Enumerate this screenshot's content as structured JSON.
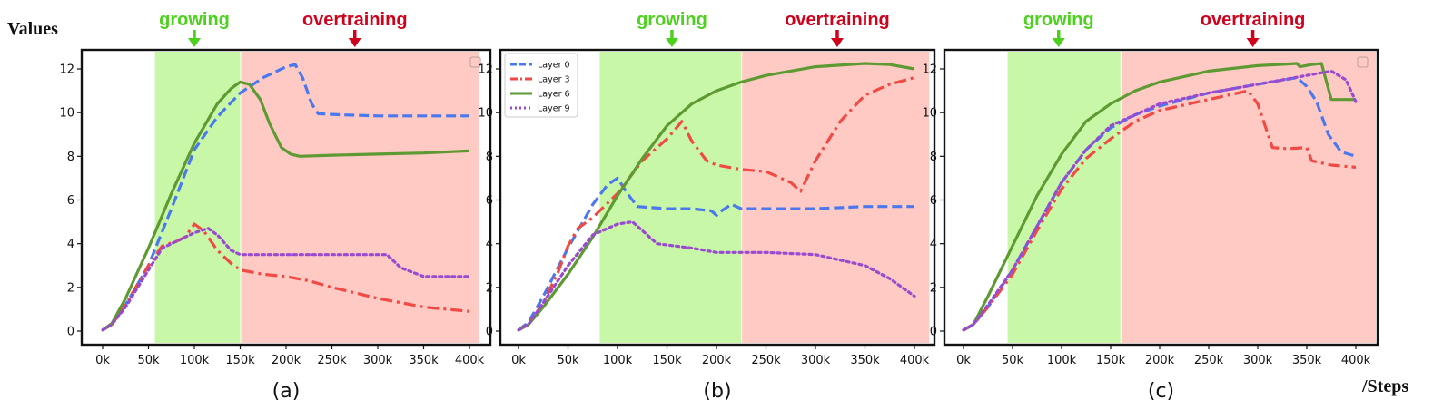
{
  "figure": {
    "ylabel": "Values",
    "xlabel": "/Steps",
    "phase_growing_label": "growing",
    "phase_overtraining_label": "overtraining",
    "colors": {
      "growing_band": "#c8f7a8",
      "overtraining_band": "#ffc9c4",
      "growing_text": "#4cd11c",
      "overtraining_text": "#d0021b",
      "layer0": "#4a78ee",
      "layer3": "#f04a45",
      "layer6": "#5e9a32",
      "layer9": "#9a4ad0"
    }
  },
  "chart_data": [
    {
      "type": "line",
      "panel_label": "(a)",
      "xlim": [
        0,
        400
      ],
      "ylim": [
        0,
        12.5
      ],
      "x_ticks": [
        0,
        50,
        100,
        150,
        200,
        250,
        300,
        350,
        400
      ],
      "x_tick_labels": [
        "0k",
        "50k",
        "100k",
        "150k",
        "200k",
        "250k",
        "300k",
        "350k",
        "400k"
      ],
      "y_ticks": [
        0,
        2,
        4,
        6,
        8,
        10,
        12
      ],
      "y_tick_labels": [
        "0",
        "2",
        "4",
        "6",
        "8",
        "10",
        "12"
      ],
      "growing_range": [
        57,
        150
      ],
      "overtraining_range": [
        150,
        410
      ],
      "growing_arrow_x": 100,
      "overtraining_arrow_x": 275,
      "show_legend": false,
      "series": [
        {
          "name": "Layer 0",
          "style": "dashed",
          "points": [
            [
              0,
              0.05
            ],
            [
              10,
              0.3
            ],
            [
              25,
              1.2
            ],
            [
              50,
              3.0
            ],
            [
              75,
              5.6
            ],
            [
              100,
              8.3
            ],
            [
              125,
              9.8
            ],
            [
              150,
              10.9
            ],
            [
              175,
              11.6
            ],
            [
              200,
              12.1
            ],
            [
              210,
              12.2
            ],
            [
              218,
              11.6
            ],
            [
              228,
              10.4
            ],
            [
              235,
              9.95
            ],
            [
              260,
              9.9
            ],
            [
              300,
              9.85
            ],
            [
              350,
              9.85
            ],
            [
              400,
              9.85
            ]
          ]
        },
        {
          "name": "Layer 3",
          "style": "dashdot",
          "points": [
            [
              0,
              0.05
            ],
            [
              10,
              0.3
            ],
            [
              25,
              1.2
            ],
            [
              50,
              3.0
            ],
            [
              65,
              3.9
            ],
            [
              80,
              4.1
            ],
            [
              90,
              4.3
            ],
            [
              100,
              4.9
            ],
            [
              110,
              4.6
            ],
            [
              125,
              3.7
            ],
            [
              140,
              3.1
            ],
            [
              150,
              2.8
            ],
            [
              175,
              2.6
            ],
            [
              200,
              2.5
            ],
            [
              225,
              2.3
            ],
            [
              250,
              2.0
            ],
            [
              300,
              1.5
            ],
            [
              350,
              1.1
            ],
            [
              400,
              0.9
            ]
          ]
        },
        {
          "name": "Layer 6",
          "style": "solid",
          "points": [
            [
              0,
              0.05
            ],
            [
              10,
              0.35
            ],
            [
              25,
              1.5
            ],
            [
              50,
              3.8
            ],
            [
              75,
              6.3
            ],
            [
              100,
              8.6
            ],
            [
              125,
              10.4
            ],
            [
              140,
              11.1
            ],
            [
              150,
              11.4
            ],
            [
              160,
              11.3
            ],
            [
              172,
              10.6
            ],
            [
              182,
              9.5
            ],
            [
              195,
              8.4
            ],
            [
              205,
              8.1
            ],
            [
              215,
              8.0
            ],
            [
              250,
              8.05
            ],
            [
              300,
              8.1
            ],
            [
              350,
              8.15
            ],
            [
              400,
              8.25
            ]
          ]
        },
        {
          "name": "Layer 9",
          "style": "dotted",
          "points": [
            [
              0,
              0.05
            ],
            [
              10,
              0.3
            ],
            [
              25,
              1.1
            ],
            [
              50,
              2.8
            ],
            [
              65,
              3.8
            ],
            [
              80,
              4.1
            ],
            [
              100,
              4.5
            ],
            [
              115,
              4.7
            ],
            [
              125,
              4.4
            ],
            [
              140,
              3.7
            ],
            [
              150,
              3.5
            ],
            [
              175,
              3.5
            ],
            [
              200,
              3.5
            ],
            [
              250,
              3.5
            ],
            [
              300,
              3.5
            ],
            [
              310,
              3.5
            ],
            [
              325,
              2.9
            ],
            [
              350,
              2.5
            ],
            [
              400,
              2.5
            ]
          ]
        }
      ]
    },
    {
      "type": "line",
      "panel_label": "(b)",
      "xlim": [
        0,
        410
      ],
      "ylim": [
        0,
        12.5
      ],
      "x_ticks": [
        0,
        50,
        100,
        150,
        200,
        250,
        300,
        350,
        400
      ],
      "x_tick_labels": [
        "0k",
        "50k",
        "100k",
        "150k",
        "200k",
        "250k",
        "300k",
        "350k",
        "400k"
      ],
      "y_ticks": [
        0,
        2,
        4,
        6,
        8,
        10,
        12
      ],
      "y_tick_labels": [
        "0",
        "2",
        "4",
        "6",
        "8",
        "10",
        "12"
      ],
      "growing_range": [
        82,
        225
      ],
      "overtraining_range": [
        225,
        415
      ],
      "growing_arrow_x": 155,
      "overtraining_arrow_x": 322,
      "show_legend": true,
      "series": [
        {
          "name": "Layer 0",
          "style": "dashed",
          "points": [
            [
              0,
              0.05
            ],
            [
              10,
              0.4
            ],
            [
              25,
              1.6
            ],
            [
              50,
              3.8
            ],
            [
              75,
              5.8
            ],
            [
              90,
              6.7
            ],
            [
              100,
              7.0
            ],
            [
              110,
              6.3
            ],
            [
              120,
              5.7
            ],
            [
              150,
              5.6
            ],
            [
              175,
              5.6
            ],
            [
              195,
              5.5
            ],
            [
              200,
              5.3
            ],
            [
              205,
              5.5
            ],
            [
              215,
              5.8
            ],
            [
              225,
              5.6
            ],
            [
              250,
              5.6
            ],
            [
              300,
              5.6
            ],
            [
              350,
              5.7
            ],
            [
              400,
              5.7
            ]
          ]
        },
        {
          "name": "Layer 3",
          "style": "dashdot",
          "points": [
            [
              0,
              0.05
            ],
            [
              10,
              0.3
            ],
            [
              25,
              1.3
            ],
            [
              40,
              2.7
            ],
            [
              50,
              3.9
            ],
            [
              60,
              4.7
            ],
            [
              75,
              5.2
            ],
            [
              100,
              6.3
            ],
            [
              125,
              7.8
            ],
            [
              150,
              8.8
            ],
            [
              165,
              9.6
            ],
            [
              175,
              8.7
            ],
            [
              190,
              7.8
            ],
            [
              200,
              7.6
            ],
            [
              225,
              7.4
            ],
            [
              250,
              7.3
            ],
            [
              275,
              6.8
            ],
            [
              285,
              6.4
            ],
            [
              300,
              7.8
            ],
            [
              325,
              9.6
            ],
            [
              350,
              10.8
            ],
            [
              375,
              11.3
            ],
            [
              400,
              11.6
            ]
          ]
        },
        {
          "name": "Layer 6",
          "style": "solid",
          "points": [
            [
              0,
              0.05
            ],
            [
              10,
              0.3
            ],
            [
              25,
              1.1
            ],
            [
              50,
              2.6
            ],
            [
              75,
              4.3
            ],
            [
              100,
              6.2
            ],
            [
              125,
              7.9
            ],
            [
              150,
              9.4
            ],
            [
              175,
              10.4
            ],
            [
              200,
              11.0
            ],
            [
              225,
              11.4
            ],
            [
              250,
              11.7
            ],
            [
              300,
              12.1
            ],
            [
              350,
              12.25
            ],
            [
              375,
              12.2
            ],
            [
              400,
              12.0
            ]
          ]
        },
        {
          "name": "Layer 9",
          "style": "dotted",
          "points": [
            [
              0,
              0.05
            ],
            [
              10,
              0.3
            ],
            [
              25,
              1.3
            ],
            [
              50,
              3.0
            ],
            [
              75,
              4.4
            ],
            [
              100,
              4.9
            ],
            [
              115,
              5.0
            ],
            [
              125,
              4.6
            ],
            [
              140,
              4.0
            ],
            [
              175,
              3.8
            ],
            [
              200,
              3.6
            ],
            [
              250,
              3.6
            ],
            [
              300,
              3.5
            ],
            [
              350,
              3.0
            ],
            [
              375,
              2.4
            ],
            [
              400,
              1.6
            ]
          ]
        }
      ]
    },
    {
      "type": "line",
      "panel_label": "(c)",
      "xlim": [
        0,
        420
      ],
      "ylim": [
        0,
        12.5
      ],
      "x_ticks": [
        0,
        50,
        100,
        150,
        200,
        250,
        300,
        350,
        400
      ],
      "x_tick_labels": [
        "0k",
        "50k",
        "100k",
        "150k",
        "200k",
        "250k",
        "300k",
        "350k",
        "400k"
      ],
      "y_ticks": [
        0,
        2,
        4,
        6,
        8,
        10,
        12
      ],
      "y_tick_labels": [
        "0",
        "2",
        "4",
        "6",
        "8",
        "10",
        "12"
      ],
      "growing_range": [
        45,
        160
      ],
      "overtraining_range": [
        160,
        425
      ],
      "growing_arrow_x": 97,
      "overtraining_arrow_x": 295,
      "show_legend": false,
      "series": [
        {
          "name": "Layer 0",
          "style": "dashed",
          "points": [
            [
              0,
              0.05
            ],
            [
              10,
              0.3
            ],
            [
              25,
              1.1
            ],
            [
              50,
              2.8
            ],
            [
              75,
              4.8
            ],
            [
              100,
              6.8
            ],
            [
              125,
              8.3
            ],
            [
              150,
              9.3
            ],
            [
              175,
              9.9
            ],
            [
              200,
              10.3
            ],
            [
              250,
              10.9
            ],
            [
              300,
              11.3
            ],
            [
              340,
              11.6
            ],
            [
              350,
              11.2
            ],
            [
              360,
              10.5
            ],
            [
              372,
              9.0
            ],
            [
              385,
              8.2
            ],
            [
              400,
              8.0
            ]
          ]
        },
        {
          "name": "Layer 3",
          "style": "dashdot",
          "points": [
            [
              0,
              0.05
            ],
            [
              10,
              0.3
            ],
            [
              25,
              1.1
            ],
            [
              50,
              2.6
            ],
            [
              75,
              4.6
            ],
            [
              100,
              6.5
            ],
            [
              125,
              7.9
            ],
            [
              150,
              8.8
            ],
            [
              175,
              9.6
            ],
            [
              200,
              10.1
            ],
            [
              250,
              10.6
            ],
            [
              290,
              11.0
            ],
            [
              300,
              10.4
            ],
            [
              315,
              8.4
            ],
            [
              330,
              8.35
            ],
            [
              350,
              8.4
            ],
            [
              355,
              7.8
            ],
            [
              375,
              7.6
            ],
            [
              400,
              7.5
            ]
          ]
        },
        {
          "name": "Layer 6",
          "style": "solid",
          "points": [
            [
              0,
              0.05
            ],
            [
              10,
              0.3
            ],
            [
              25,
              1.6
            ],
            [
              50,
              3.9
            ],
            [
              75,
              6.2
            ],
            [
              100,
              8.1
            ],
            [
              125,
              9.6
            ],
            [
              150,
              10.4
            ],
            [
              175,
              11.0
            ],
            [
              200,
              11.4
            ],
            [
              250,
              11.9
            ],
            [
              300,
              12.15
            ],
            [
              340,
              12.25
            ],
            [
              343,
              12.1
            ],
            [
              355,
              12.2
            ],
            [
              365,
              12.25
            ],
            [
              375,
              10.6
            ],
            [
              395,
              10.6
            ],
            [
              400,
              10.6
            ]
          ]
        },
        {
          "name": "Layer 9",
          "style": "dotted",
          "points": [
            [
              0,
              0.05
            ],
            [
              10,
              0.3
            ],
            [
              25,
              1.2
            ],
            [
              50,
              2.8
            ],
            [
              75,
              4.8
            ],
            [
              100,
              6.8
            ],
            [
              125,
              8.3
            ],
            [
              150,
              9.4
            ],
            [
              175,
              9.9
            ],
            [
              200,
              10.4
            ],
            [
              250,
              10.9
            ],
            [
              300,
              11.3
            ],
            [
              350,
              11.7
            ],
            [
              375,
              11.9
            ],
            [
              390,
              11.5
            ],
            [
              400,
              10.5
            ]
          ]
        }
      ]
    }
  ]
}
